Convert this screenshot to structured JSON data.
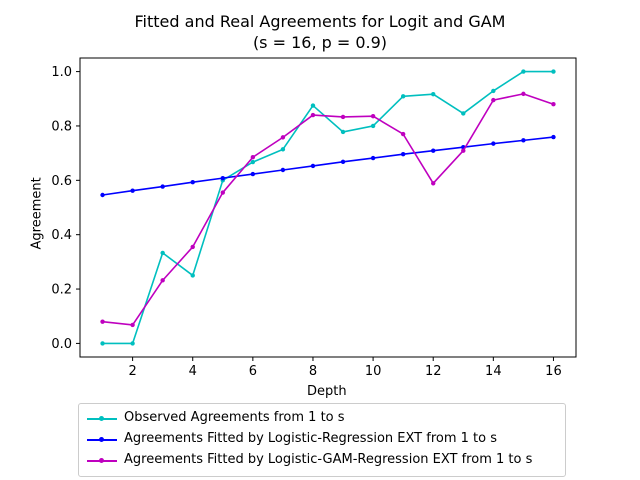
{
  "chart_data": {
    "type": "line",
    "title": "Fitted and Real Agreements for Logit and GAM",
    "subtitle": "(s = 16, p = 0.9)",
    "xlabel": "Depth",
    "ylabel": "Agreement",
    "xlim": [
      0.25,
      16.75
    ],
    "ylim": [
      -0.05,
      1.05
    ],
    "xticks": [
      2,
      4,
      6,
      8,
      10,
      12,
      14,
      16
    ],
    "yticks": [
      0.0,
      0.2,
      0.4,
      0.6,
      0.8,
      1.0
    ],
    "ytick_labels": [
      "0.0",
      "0.2",
      "0.4",
      "0.6",
      "0.8",
      "1.0"
    ],
    "grid": false,
    "legend_position": "below",
    "x": [
      1,
      2,
      3,
      4,
      5,
      6,
      7,
      8,
      9,
      10,
      11,
      12,
      13,
      14,
      15,
      16
    ],
    "series": [
      {
        "name": "Observed Agreements from 1 to s",
        "color": "#00bfbf",
        "values": [
          0.0,
          0.0,
          0.333,
          0.25,
          0.6,
          0.667,
          0.714,
          0.875,
          0.778,
          0.8,
          0.909,
          0.917,
          0.846,
          0.929,
          1.0,
          1.0
        ]
      },
      {
        "name": "Agreements Fitted by Logistic-Regression EXT from 1 to s",
        "color": "#0000ff",
        "values": [
          0.546,
          0.562,
          0.577,
          0.593,
          0.608,
          0.623,
          0.638,
          0.653,
          0.668,
          0.682,
          0.696,
          0.709,
          0.722,
          0.735,
          0.747,
          0.759
        ]
      },
      {
        "name": "Agreements Fitted by Logistic-GAM-Regression EXT from 1 to s",
        "color": "#bf00bf",
        "values": [
          0.08,
          0.068,
          0.232,
          0.355,
          0.555,
          0.685,
          0.758,
          0.84,
          0.833,
          0.836,
          0.77,
          0.589,
          0.709,
          0.895,
          0.918,
          0.88
        ]
      }
    ]
  }
}
